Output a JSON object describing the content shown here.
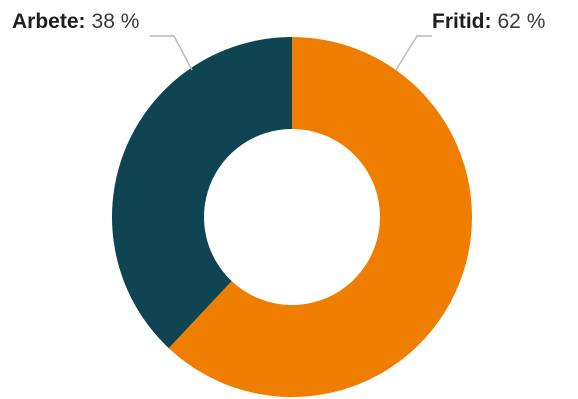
{
  "chart_data": {
    "type": "pie",
    "donut": true,
    "slices": [
      {
        "label": "Arbete",
        "value": 38,
        "display": "38 %",
        "color": "#0f4552"
      },
      {
        "label": "Fritid",
        "value": 62,
        "display": "62 %",
        "color": "#ee7d00"
      }
    ],
    "label_separator": ":",
    "legend": "callouts-top"
  }
}
